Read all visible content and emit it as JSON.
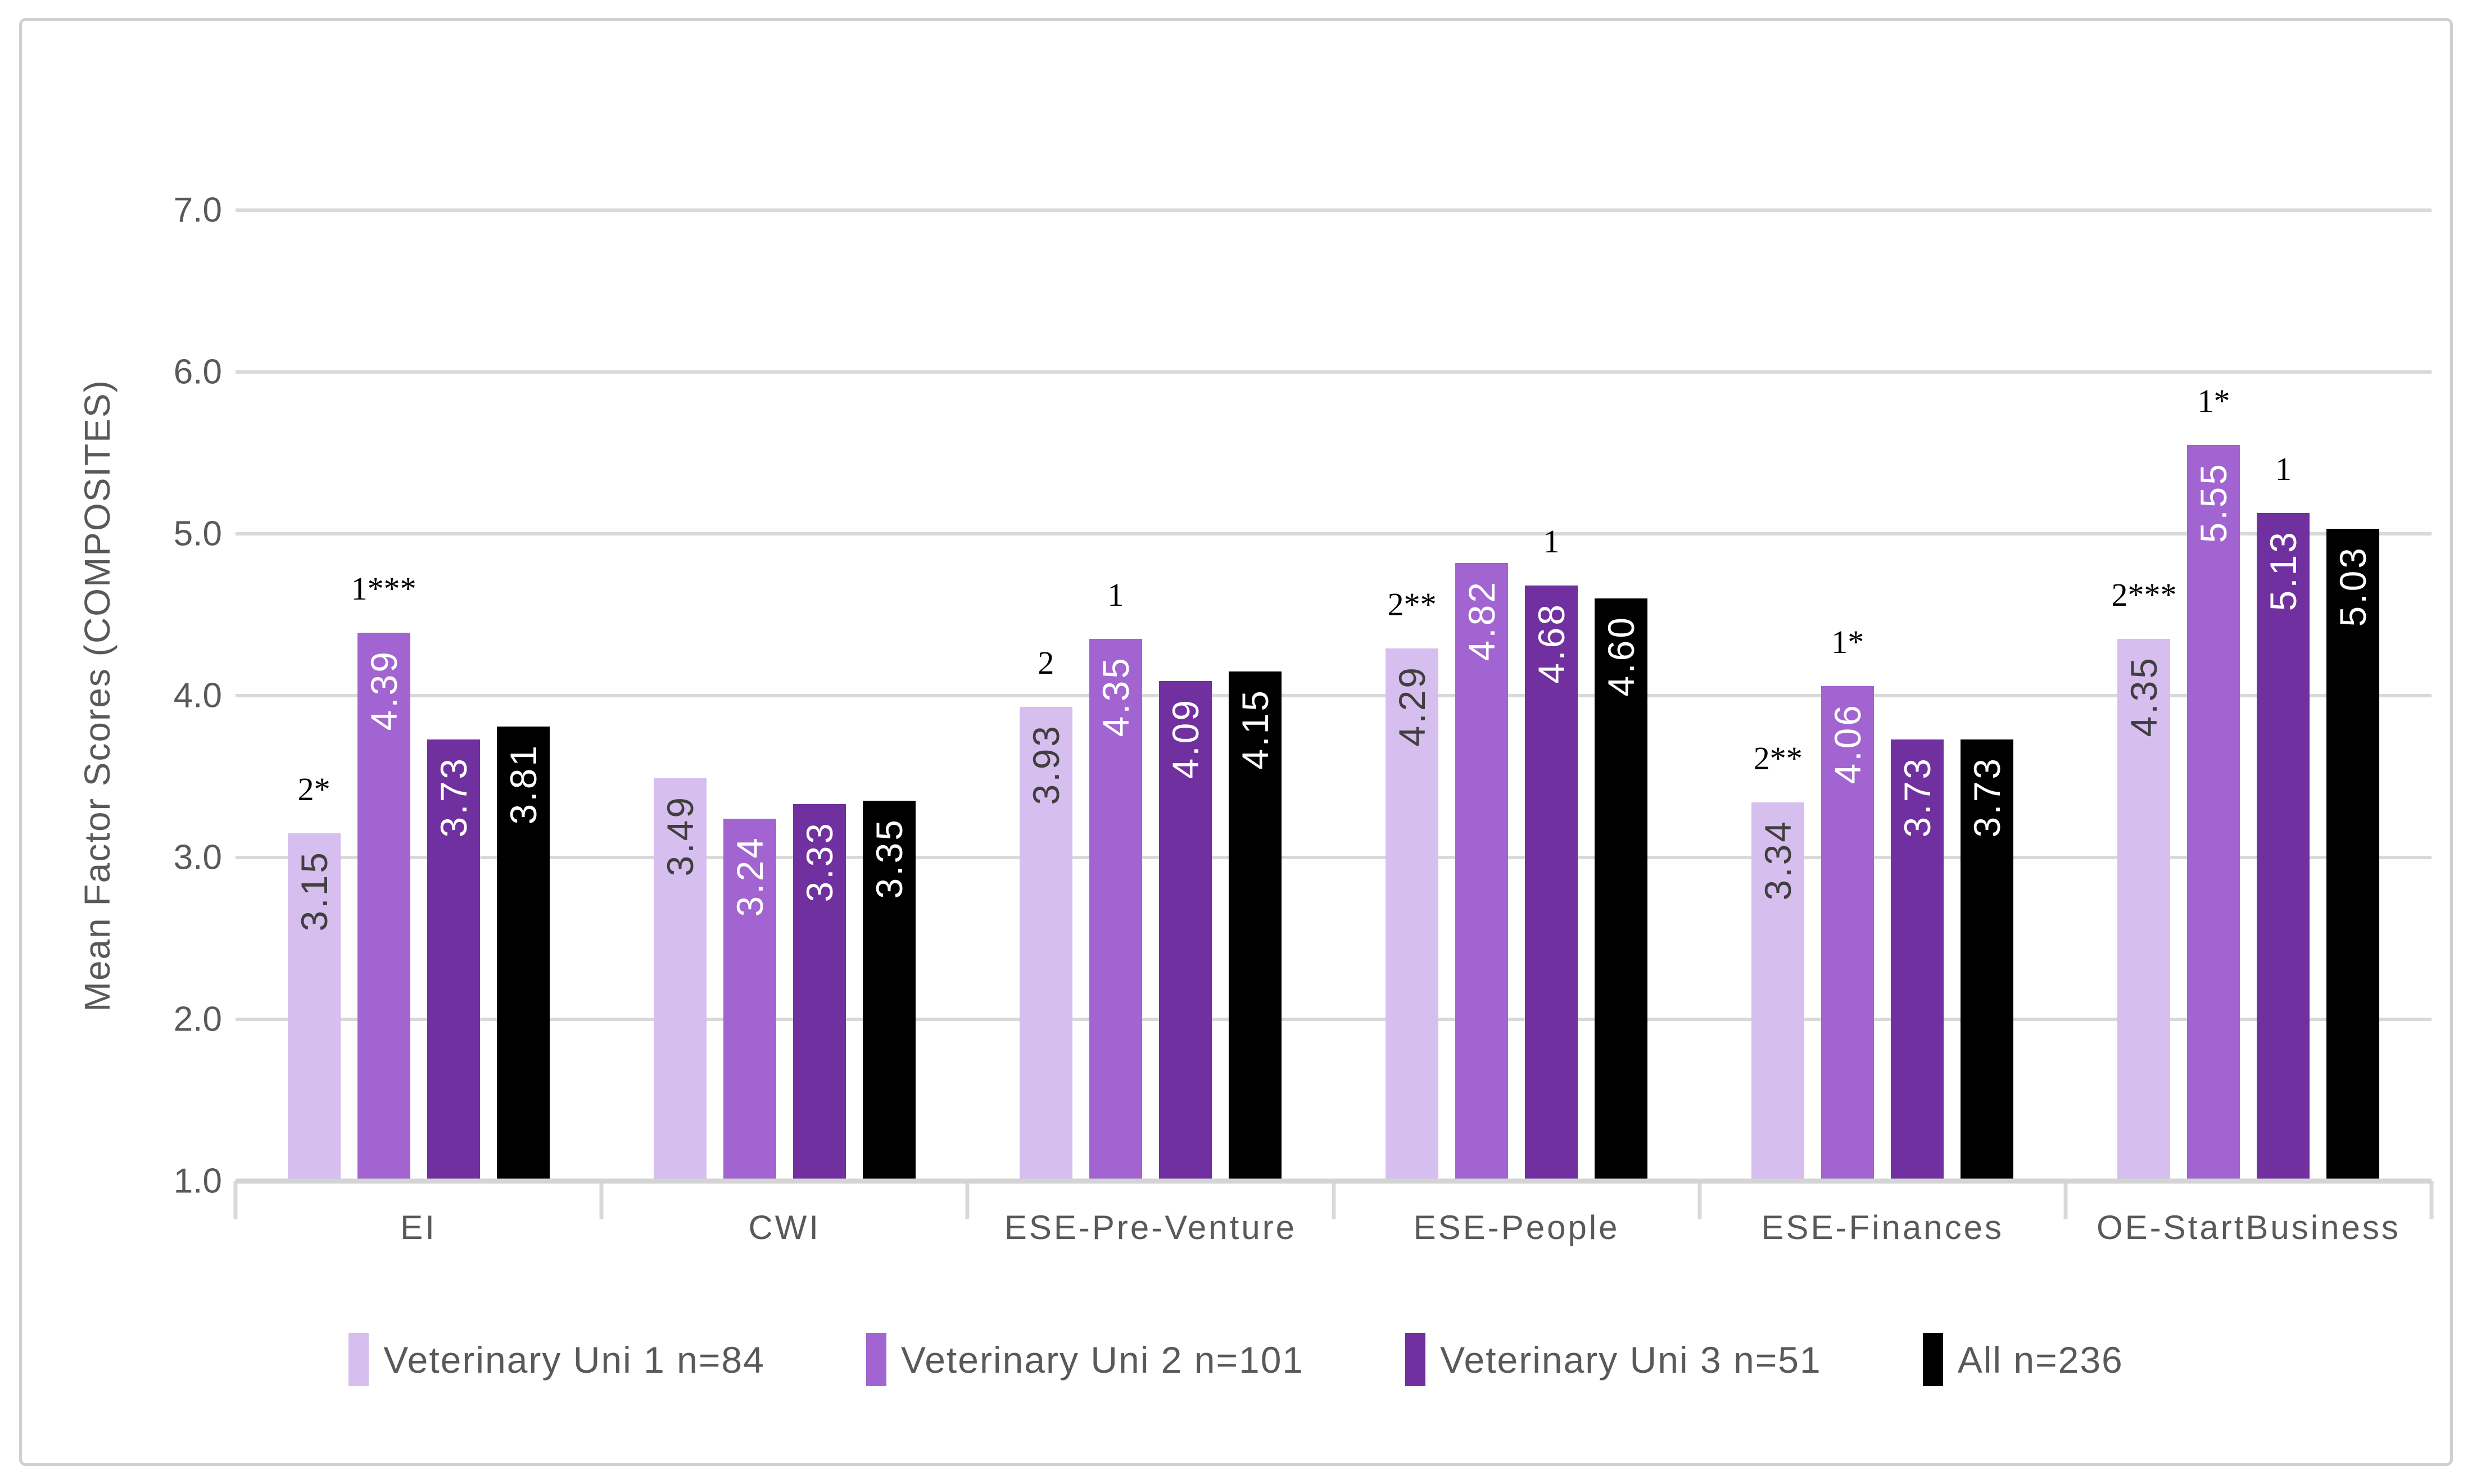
{
  "chart_data": {
    "type": "bar",
    "title": "",
    "ylabel": "Mean Factor Scores (COMPOSITES)",
    "xlabel": "",
    "ylim": [
      1.0,
      7.0
    ],
    "yticks": [
      "7.0",
      "6.0",
      "5.0",
      "4.0",
      "3.0",
      "2.0",
      "1.0"
    ],
    "grid": true,
    "legend_position": "bottom",
    "categories": [
      "EI",
      "CWI",
      "ESE-Pre-Venture",
      "ESE-People",
      "ESE-Finances",
      "OE-StartBusiness"
    ],
    "series": [
      {
        "name": "Veterinary Uni 1 n=84",
        "color": "#D6BEEE",
        "label_color": "#3F3F3F",
        "values": [
          3.15,
          3.49,
          3.93,
          4.29,
          3.34,
          4.35
        ]
      },
      {
        "name": "Veterinary Uni 2 n=101",
        "color": "#A264D0",
        "label_color": "#FFFFFF",
        "values": [
          4.39,
          3.24,
          4.35,
          4.82,
          4.06,
          5.55
        ]
      },
      {
        "name": "Veterinary Uni 3 n=51",
        "color": "#7030A0",
        "label_color": "#FFFFFF",
        "values": [
          3.73,
          3.33,
          4.09,
          4.68,
          3.73,
          5.13
        ]
      },
      {
        "name": "All n=236",
        "color": "#000000",
        "label_color": "#FFFFFF",
        "values": [
          3.81,
          3.35,
          4.15,
          4.6,
          3.73,
          5.03
        ]
      }
    ],
    "annotations": [
      {
        "category": 0,
        "series": 0,
        "text": "2*"
      },
      {
        "category": 0,
        "series": 1,
        "text": "1***"
      },
      {
        "category": 2,
        "series": 0,
        "text": "2"
      },
      {
        "category": 2,
        "series": 1,
        "text": "1"
      },
      {
        "category": 3,
        "series": 0,
        "text": "2**"
      },
      {
        "category": 3,
        "series": 2,
        "text": "1"
      },
      {
        "category": 4,
        "series": 0,
        "text": "2**"
      },
      {
        "category": 4,
        "series": 1,
        "text": "1*"
      },
      {
        "category": 5,
        "series": 0,
        "text": "2***"
      },
      {
        "category": 5,
        "series": 1,
        "text": "1*"
      },
      {
        "category": 5,
        "series": 2,
        "text": "1"
      }
    ],
    "colors": {
      "gridline": "#D9D9D9",
      "axis_line": "#D4D4D4",
      "axis_text": "#595959",
      "frame_border": "#D0D0D0",
      "annotation_text": "#000000"
    }
  }
}
